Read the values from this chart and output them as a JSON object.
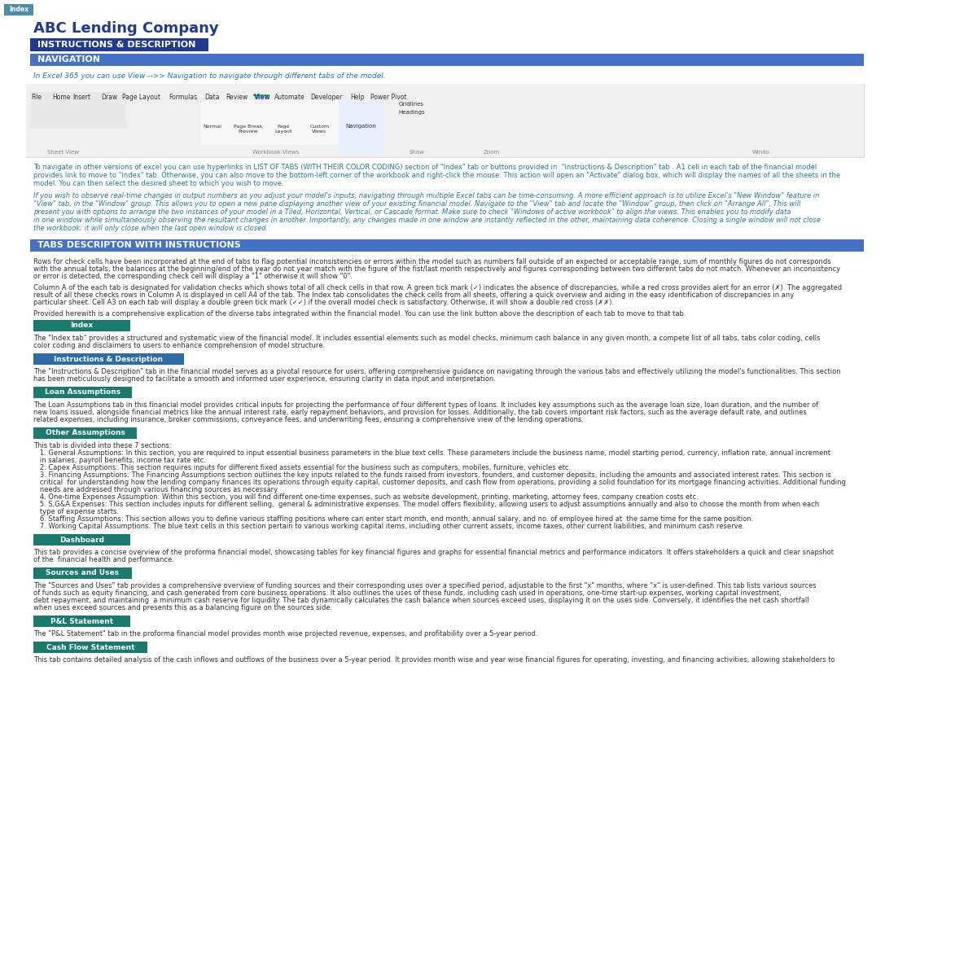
{
  "title": "ABC Lending Company",
  "index_tab": "Index",
  "index_tab_color": "#4a8fa8",
  "section1_title": "INSTRUCTIONS & DESCRIPTION",
  "section1_bg": "#1f3a8f",
  "section2_title": "NAVIGATION",
  "section2_bg": "#4472c4",
  "nav_text": "In Excel 365 you can use View -->> Navigation to navigate through different tabs of the model.",
  "nav_text_color": "#1f7a9e",
  "nav_body": "To navigate in other versions of excel you can use hyperlinks in LIST OF TABS (WITH THEIR COLOR CODING) section of \"Index\" tab or buttons provided in  \"Instructions & Description\" tab . A1 cell in each tab of the financial model provides link to move to \"Index\" tab. Otherwise, you can also move to the bottom-left corner of the workbook and right-click the mouse. This action will open an \"Activate\" dialog box, which will display the names of all the sheets in the model. You can then select the desired sheet to which you wish to move.",
  "italic_text": "If you wish to observe real-time changes in output numbers as you adjust your model's inputs, navigating through multiple Excel tabs can be time-consuming. A more efficient approach is to utilize Excel's \"New Window\" feature in \"View\" tab, in the \"Window\" group. This allows you to open a new pane displaying another view of your existing financial model. Navigate to the \"View\" tab and locate the \"Window\" group, then click on \"Arrange All\", This will present you with options to arrange the two instances of your model in a Tiled, Horizontal, Vertical, or Cascade format. Make sure to check \"Windows of active workbook\" to align the views. This enables you to modify data in one window while simultaneously observing the resultant changes in another. Importantly, any changes made in one window are instantly reflected in the other, maintaining data coherence. Closing a single window will not close the workbook; it will only close when the last open window is closed.",
  "section3_title": "TABS DESCRIPTON WITH INSTRUCTIONS",
  "section3_bg": "#4472c4",
  "tabs_intro1": "Rows for check cells have been incorporated at the end of tabs to flag potential inconsistencies or errors within the model such as numbers fall outside of an expected or acceptable range, sum of monthly figures do not corresponds with the annual totals, the balances at the beginning/end of the year do not year match with the figure of the fist/last month respectively and figures corresponding between two different tabs do not match. Whenever an inconsistency or error is detected, the corresponding check cell will display a \"1\" otherwise it will show \"0\".",
  "tabs_intro2": "Column A of the each tab is designated for validation checks which shows total of all check cells in that row. A green tick mark (✓) indicates the absence of discrepancies, while a red cross provides alert for an error (✗). The aggregated result of all these checks rows in Column A is displayed in cell A4 of the tab. The Index tab consolidates the check cells from all sheets, offering a quick overview and aiding in the easy identification of discrepancies in any particular sheet. Cell A3 on each tab will display a double green tick mark (✓✓) if the overall model check is satisfactory. Otherwise, it will show a double red cross (✗✗).",
  "tabs_intro3": "Provided herewith is a comprehensive explication of the diverse tabs integrated within the financial model. You can use the link button above the description of each tab to move to that tab.",
  "tab_buttons": [
    {
      "name": "Index",
      "color": "#1a7a6e"
    },
    {
      "name": "Instructions & Description",
      "color": "#2e6da4"
    },
    {
      "name": "Loan Assumptions",
      "color": "#1a7a6e"
    },
    {
      "name": "Other Assumptions",
      "color": "#1a7a6e"
    },
    {
      "name": "Dashboard",
      "color": "#1a7a6e"
    },
    {
      "name": "Sources and Uses",
      "color": "#1a7a6e"
    },
    {
      "name": "P&L Statement",
      "color": "#1a7a6e"
    },
    {
      "name": "Cash Flow Statement",
      "color": "#1a7a6e"
    }
  ],
  "tab_descriptions": [
    "The \"Index tab\" provides a structured and systematic view of the financial model. It includes essential elements such as model checks, minimum cash balance in any given month, a complete list of all tabs, tabs color coding, cells color coding and disclaimers to users to enhance comprehension of model structure.",
    "The \"Instructions & Description\" tab in the financial model serves as a pivotal resource for users, offering comprehensive guidance on navigating through the various tabs and effectively utilizing the model's functionalities. This section has been meticulously designed to facilitate a smooth and informed user experience, ensuring clarity in data input and interpretation.",
    "The Loan Assumptions tab in this financial model provides critical inputs for projecting the performance of four different types of loans. It includes key assumptions such as the average loan size, loan duration, and the number of new loans issued, alongside financial metrics like the annual interest rate, early repayment behaviors, and provision for losses. Additionally, the tab covers important risk factors, such as the average default rate, and outlines related expenses, including insurance, broker commissions, conveyance fees, and underwriting fees, ensuring a comprehensive view of the lending operations.",
    "This tab is divided into these 7 sections:\n1. General Assumptions: In this section, you are required to input essential business parameters in the blue text cells. These parameters include the business name, model starting period, currency, inflation rate, annual increment in salaries, payroll benefits, income tax rate etc.\n2. Capex Assumptions: This section requires inputs for different fixed assets essential for the business such as computers, mobiles, furniture, vehicles etc.\n3. Financing Assumptions: The Financing Assumptions section outlines the key inputs related to the funds raised from investors, founders, and customer deposits, including the amounts and associated interest rates. This section is critical  for understanding how the lending company finances its operations through equity capital, customer deposits, and cash flow from operations, providing a solid foundation for its mortgage financing activities. Additional funding needs are addressed through various financing sources as necessary.\n4. One-time Expenses Assumption: Within this section, you will find different one-time expenses, such as website development, printing, marketing, attorney fees, company creation costs etc.\n5. S,G&A Expenses: This section includes inputs for different selling,  general & administrative expenses. The model offers flexibility, allowing users to adjust assumptions annually and also to choose the month from when each type of expense starts.\n6. Staffing Assumptions: This section allows you to define various staffing positions where can enter start month, end month, annual salary, and no. of employee hired at  the same time for the same position.\n7. Working Capital Assumptions: The blue text cells in this section pertain to various working capital items, including other current assets, income taxes, other current liabilities, and minimum cash reserve.",
    "This tab provides a concise overview of the proforma financial model, showcasing tables for key financial figures and graphs for essential financial metrics and performance indicators. It offers stakeholders a quick and clear snapshot of the  financial health and performance.",
    "The \"Sources and Uses\" tab provides a comprehensive overview of funding sources and their corresponding uses over a specified period, adjustable to the first \"x\" months, where \"x\" is user-defined. This tab lists various sources of funds such as equity financing, and cash generated from core business operations. It also outlines the uses of these funds, including cash used in operations, one-time start-up expenses, working capital investment, debt repayment, and maintaining  a minimum cash reserve for liquidity. The tab dynamically calculates the cash balance when sources exceed uses, displaying it on the uses side. Conversely, it identifies the net cash shortfall when uses exceed sources and presents this as a balancing figure on the sources side.",
    "The \"P&L Statement\" tab in the proforma financial model provides month wise projected revenue, expenses, and profitability over a 5-year period.",
    "This tab contains detailed analysis of the cash inflows and outflows of the business over a 5-year period. It provides month wise and year wise financial figures for operating, investing, and financing activities, allowing stakeholders to"
  ],
  "title_color": "#1f3a8f",
  "body_text_color": "#000000",
  "italic_text_color": "#1f7a9e",
  "bg_color": "#ffffff"
}
